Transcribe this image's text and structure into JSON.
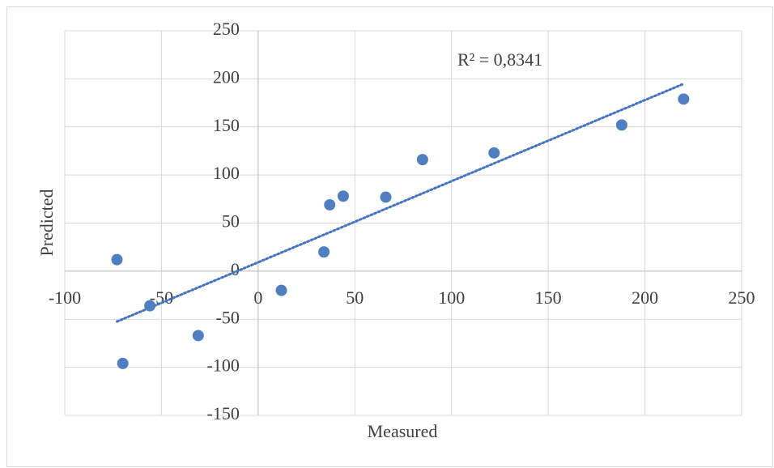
{
  "chart_data": {
    "type": "scatter",
    "x": [
      -73,
      -70,
      -56,
      -31,
      12,
      34,
      37,
      44,
      66,
      85,
      122,
      188,
      220
    ],
    "values": [
      12,
      -96,
      -36,
      -67,
      -20,
      20,
      69,
      78,
      77,
      116,
      123,
      152,
      179
    ],
    "color": "#4f7fc1",
    "xlim": [
      -100,
      250
    ],
    "xticks": [
      -100,
      -50,
      0,
      50,
      100,
      150,
      200,
      250
    ],
    "ylim": [
      -150,
      250
    ],
    "yticks": [
      -150,
      -100,
      -50,
      0,
      50,
      100,
      150,
      200,
      250
    ],
    "xlabel": "Measured",
    "ylabel": "Predicted",
    "annotation": "R² = 0,8341",
    "trendline": "linear",
    "trendline_color": "#4472c4",
    "grid": true
  }
}
